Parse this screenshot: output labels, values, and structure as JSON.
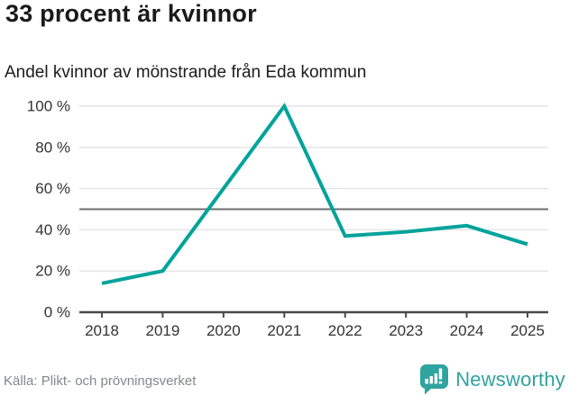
{
  "header": {
    "title": "33 procent är kvinnor",
    "subtitle": "Andel kvinnor av mönstrande från Eda kommun"
  },
  "chart_data": {
    "type": "line",
    "title": "Andel kvinnor av mönstrande från Eda kommun",
    "x": [
      "2018",
      "2019",
      "2020",
      "2021",
      "2022",
      "2023",
      "2024",
      "2025"
    ],
    "series": [
      {
        "name": "Andel kvinnor (%)",
        "values": [
          14,
          20,
          60,
          100,
          37,
          39,
          42,
          33
        ]
      }
    ],
    "xlabel": "",
    "ylabel": "",
    "ylim": [
      0,
      100
    ],
    "yticks": [
      0,
      20,
      40,
      60,
      80,
      100
    ],
    "ytick_labels": [
      "0 %",
      "20 %",
      "40 %",
      "60 %",
      "80 %",
      "100 %"
    ],
    "reference_line": 50,
    "grid": true,
    "legend": "none"
  },
  "colors": {
    "accent": "#00a39b",
    "brand": "#2fa3a0",
    "grid": "#e3e3e3",
    "reference": "#6f6f6f",
    "axis": "#4a4a4a",
    "tick_text": "#333333"
  },
  "footer": {
    "source": "Källa: Plikt- och prövningsverket",
    "brand": "Newsworthy"
  }
}
